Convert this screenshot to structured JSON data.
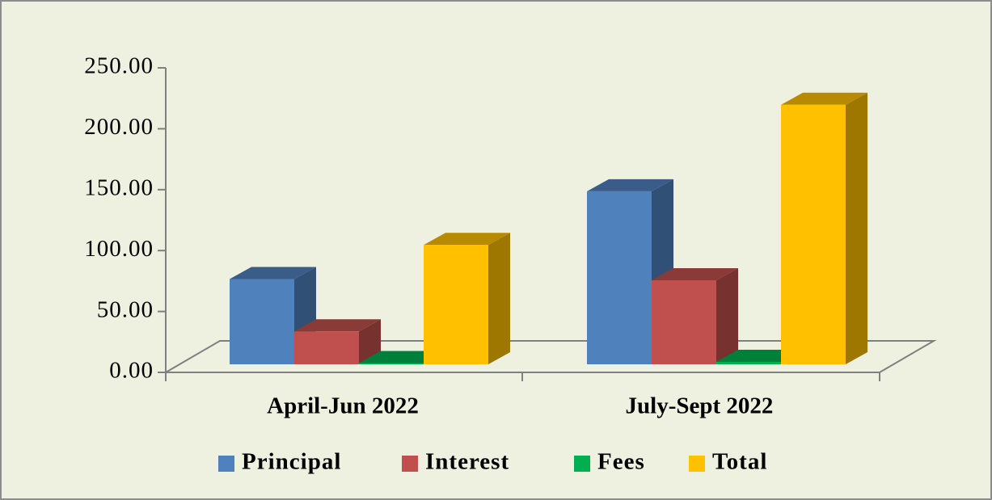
{
  "chart_data": {
    "type": "bar3d",
    "categories": [
      "April-Jun 2022",
      "July-Sept 2022"
    ],
    "series": [
      {
        "name": "Principal",
        "color": "#4f81bd",
        "values": [
          70,
          142
        ]
      },
      {
        "name": "Interest",
        "color": "#c0504d",
        "values": [
          27,
          69
        ]
      },
      {
        "name": "Fees",
        "color": "#00b050",
        "values": [
          1,
          2
        ]
      },
      {
        "name": "Total",
        "color": "#ffc000",
        "values": [
          98,
          213
        ]
      }
    ],
    "ylim": [
      0,
      250
    ],
    "yticks": [
      {
        "value": 0,
        "label": "0.00"
      },
      {
        "value": 50,
        "label": "50.00"
      },
      {
        "value": 100,
        "label": "100.00"
      },
      {
        "value": 150,
        "label": "150.00"
      },
      {
        "value": 200,
        "label": "200.00"
      },
      {
        "value": 250,
        "label": "250.00"
      }
    ],
    "legend": "bottom"
  }
}
